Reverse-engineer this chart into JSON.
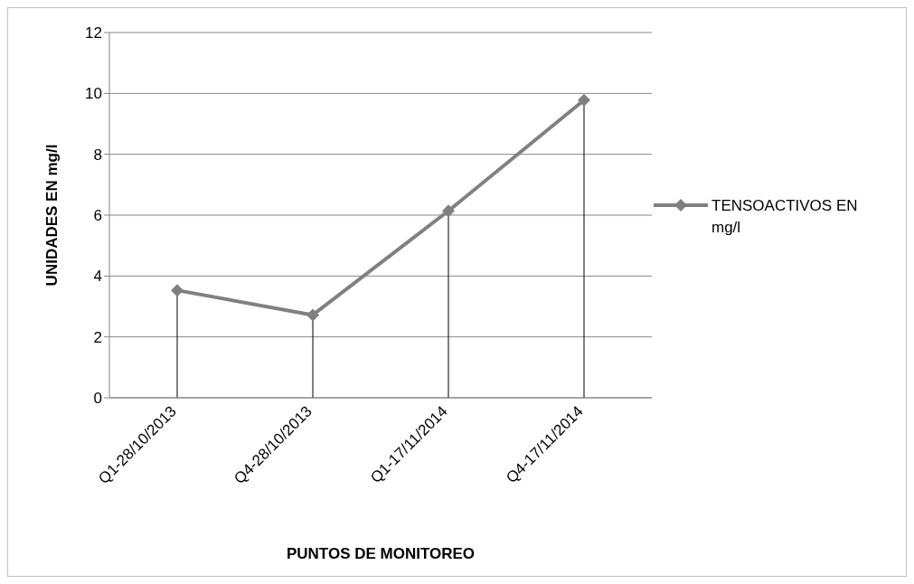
{
  "chart_data": {
    "type": "line",
    "xlabel": "PUNTOS DE MONITOREO",
    "ylabel": "UNIDADES EN mg/l",
    "categories": [
      "Q1-28/10/2013",
      "Q4-28/10/2013",
      "Q1-17/11/2014",
      "Q4-17/11/2014"
    ],
    "series": [
      {
        "name": "TENSOACTIVOS EN mg/l",
        "color": "#808080",
        "values": [
          3.53,
          2.72,
          6.14,
          9.78
        ],
        "errors": [
          [
            0,
            3.53
          ],
          [
            0,
            2.72
          ],
          [
            0,
            6.14
          ],
          [
            0,
            9.78
          ]
        ]
      }
    ],
    "ylim": [
      0,
      12
    ],
    "yticks": [
      0,
      2,
      4,
      6,
      8,
      10,
      12
    ],
    "grid": "y",
    "legend": "right",
    "marker": "diamond",
    "line_style": "solid"
  }
}
